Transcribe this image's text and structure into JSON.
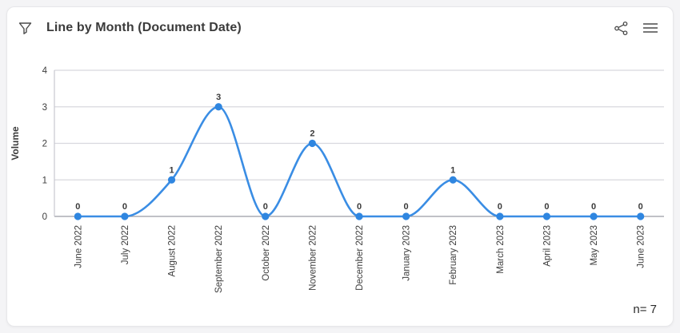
{
  "header": {
    "title": "Line by Month (Document Date)",
    "filter_icon": "funnel-icon",
    "share_icon": "share-icon",
    "menu_icon": "hamburger-menu-icon"
  },
  "chart_data": {
    "type": "line",
    "title": "Line by Month (Document Date)",
    "categories": [
      "June 2022",
      "July 2022",
      "August 2022",
      "September 2022",
      "October 2022",
      "November 2022",
      "December 2022",
      "January 2023",
      "February 2023",
      "March 2023",
      "April 2023",
      "May 2023",
      "June 2023"
    ],
    "values": [
      0,
      0,
      1,
      3,
      0,
      2,
      0,
      0,
      1,
      0,
      0,
      0,
      0
    ],
    "xlabel": "",
    "ylabel": "Volume",
    "ylim": [
      0,
      4
    ],
    "yticks": [
      0,
      1,
      2,
      3,
      4
    ],
    "grid": true,
    "legend": "none",
    "smooth": true,
    "point_labels": true,
    "colors": {
      "line": "#3a8de4",
      "point": "#2f86e0",
      "grid": "#d8d8de",
      "axis": "#9b9ca3",
      "plot_border": "#c9c9d0",
      "tick_text": "#3d3d3d",
      "value_label": "#3a3a3a"
    }
  },
  "footer": {
    "n_label": "n= 7"
  }
}
